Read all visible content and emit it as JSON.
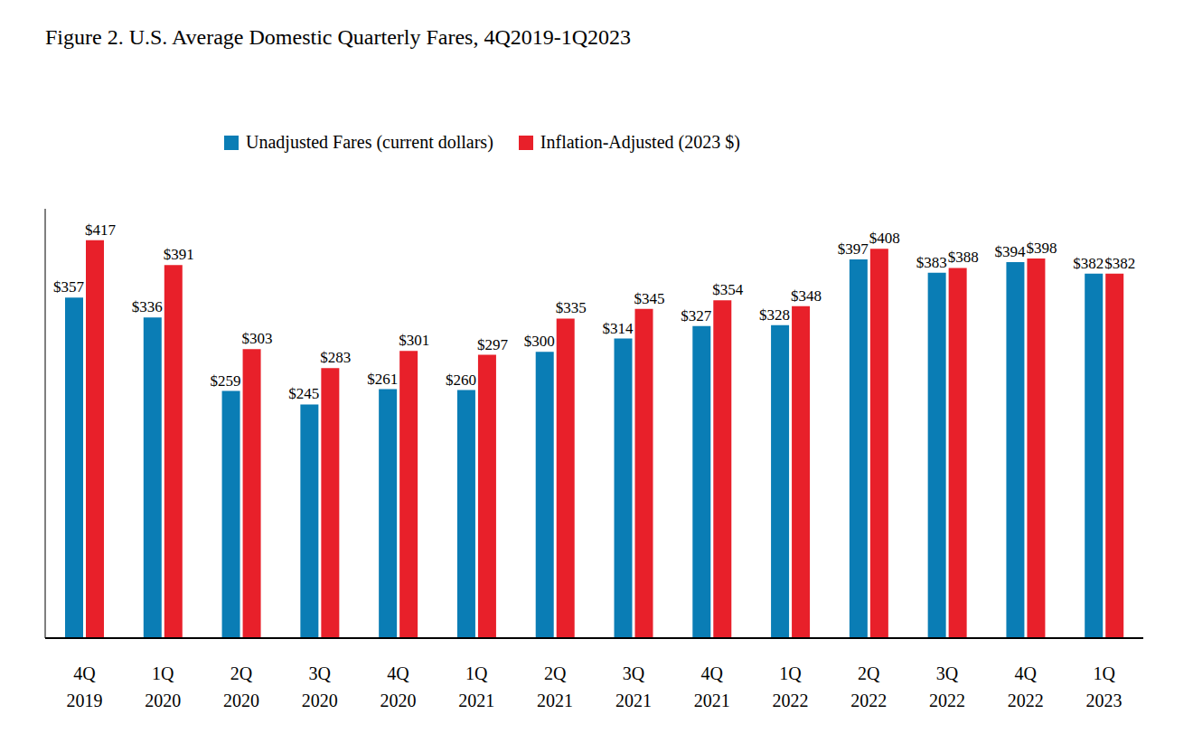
{
  "chart_data": {
    "type": "bar",
    "title": "Figure 2. U.S. Average Domestic Quarterly Fares, 4Q2019-1Q2023",
    "categories": [
      "4Q 2019",
      "1Q 2020",
      "2Q 2020",
      "3Q 2020",
      "4Q 2020",
      "1Q 2021",
      "2Q 2021",
      "3Q 2021",
      "4Q 2021",
      "1Q 2022",
      "2Q 2022",
      "3Q 2022",
      "4Q 2022",
      "1Q 2023"
    ],
    "series": [
      {
        "name": "Unadjusted Fares (current dollars)",
        "color": "#0a7db5",
        "values": [
          357,
          336,
          259,
          245,
          261,
          260,
          300,
          314,
          327,
          328,
          397,
          383,
          394,
          382
        ],
        "value_labels": [
          "$357",
          "$336",
          "$259",
          "$245",
          "$261",
          "$260",
          "$300",
          "$314",
          "$327",
          "$328",
          "$397",
          "$383",
          "$394",
          "$382"
        ]
      },
      {
        "name": "Inflation-Adjusted (2023 $)",
        "color": "#e8202a",
        "values": [
          417,
          391,
          303,
          283,
          301,
          297,
          335,
          345,
          354,
          348,
          408,
          388,
          398,
          382
        ],
        "value_labels": [
          "$417",
          "$391",
          "$303",
          "$283",
          "$301",
          "$297",
          "$335",
          "$345",
          "$354",
          "$348",
          "$408",
          "$388",
          "$398",
          "$382"
        ]
      }
    ],
    "ylim": [
      0,
      450
    ],
    "grid": false,
    "legend": "top",
    "data_labels": true,
    "tick_labels": "x"
  }
}
